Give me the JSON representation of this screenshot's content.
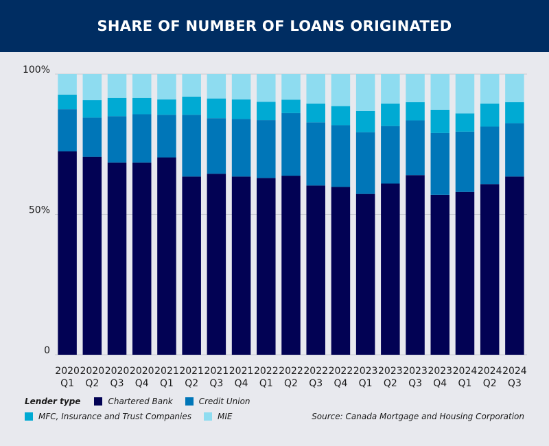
{
  "title": "SHARE OF NUMBER OF LOANS ORIGINATED",
  "source": "Source: Canada Mortgage and Housing Corporation",
  "legend": {
    "title": "Lender type"
  },
  "chart_data": {
    "type": "bar",
    "stacked": true,
    "title": "SHARE OF NUMBER OF LOANS ORIGINATED",
    "categories": [
      [
        "2020",
        "Q1"
      ],
      [
        "2020",
        "Q2"
      ],
      [
        "2020",
        "Q3"
      ],
      [
        "2020",
        "Q4"
      ],
      [
        "2021",
        "Q1"
      ],
      [
        "2021",
        "Q2"
      ],
      [
        "2021",
        "Q3"
      ],
      [
        "2021",
        "Q4"
      ],
      [
        "2022",
        "Q1"
      ],
      [
        "2022",
        "Q2"
      ],
      [
        "2022",
        "Q3"
      ],
      [
        "2022",
        "Q4"
      ],
      [
        "2023",
        "Q1"
      ],
      [
        "2023",
        "Q2"
      ],
      [
        "2023",
        "Q3"
      ],
      [
        "2023",
        "Q4"
      ],
      [
        "2024",
        "Q1"
      ],
      [
        "2024",
        "Q2"
      ],
      [
        "2024",
        "Q3"
      ]
    ],
    "ylim": [
      0,
      100
    ],
    "yticks": [
      {
        "value": 0,
        "label": "0"
      },
      {
        "value": 50,
        "label": "50%"
      },
      {
        "value": 100,
        "label": "100%"
      }
    ],
    "grid": true,
    "legend_position": "bottom",
    "series": [
      {
        "name": "Chartered Bank",
        "color": "#020254",
        "values": [
          72.5,
          70.5,
          68.5,
          68.5,
          70.3,
          63.5,
          64.5,
          63.5,
          63,
          63.8,
          60.3,
          59.8,
          57.3,
          61,
          64,
          57,
          58,
          60.8,
          63.5
        ]
      },
      {
        "name": "Credit Union",
        "color": "#0076b8",
        "values": [
          15,
          14,
          16.5,
          17.2,
          15.2,
          22,
          19.8,
          20.5,
          20.6,
          22.3,
          22.5,
          22,
          22,
          20.5,
          19.5,
          22,
          21.5,
          20.5,
          19
        ]
      },
      {
        "name": "MFC, Insurance and Trust Companies",
        "color": "#00aad3",
        "values": [
          5.2,
          6.2,
          6.5,
          5.8,
          5.5,
          6.5,
          7,
          7,
          6.5,
          4.8,
          6.7,
          6.8,
          7.5,
          8,
          6.5,
          8.3,
          6.5,
          8.2,
          7.5
        ]
      },
      {
        "name": "MIE",
        "color": "#8edcf0",
        "values": [
          7.3,
          9.3,
          8.5,
          8.5,
          9,
          8,
          8.7,
          9,
          9.9,
          9.1,
          10.5,
          11.4,
          13.2,
          10.5,
          10,
          12.7,
          14,
          10.5,
          10
        ]
      }
    ]
  }
}
